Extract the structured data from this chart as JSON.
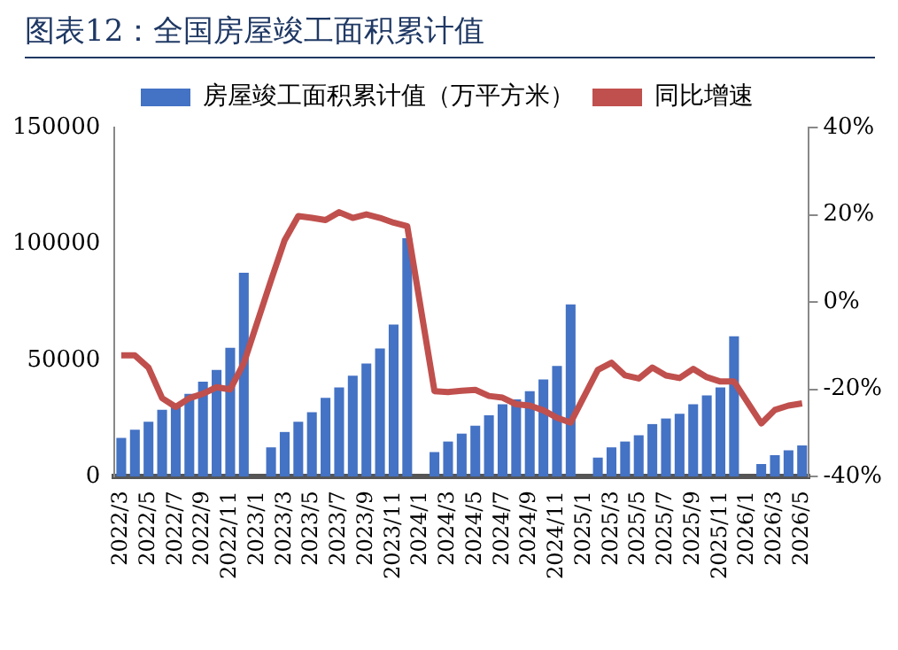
{
  "chart_data": {
    "type": "bar",
    "title": "图表12：全国房屋竣工面积累计值",
    "categories": [
      "2022/3",
      null,
      "2022/5",
      null,
      "2022/7",
      null,
      "2022/9",
      null,
      "2022/11",
      null,
      "2023/1",
      null,
      "2023/3",
      null,
      "2023/5",
      null,
      "2023/7",
      null,
      "2023/9",
      null,
      "2023/11",
      null,
      "2024/1",
      null,
      "2024/3",
      null,
      "2024/5",
      null,
      "2024/7",
      null,
      "2024/9",
      null,
      "2024/11",
      null,
      "2025/1",
      null,
      "2025/3",
      null,
      "2025/5",
      null,
      "2025/7",
      null,
      "2025/9",
      null,
      "2025/11",
      null,
      "2026/1",
      null,
      "2026/3",
      null,
      "2026/5"
    ],
    "series": [
      {
        "name": "房屋竣工面积累计值（万平方米）",
        "color": "#4472c4",
        "values": [
          16700,
          20200,
          23600,
          28700,
          30500,
          35600,
          40800,
          45900,
          55400,
          87600,
          null,
          12600,
          19200,
          23600,
          27700,
          33900,
          38300,
          43400,
          48600,
          55100,
          65400,
          102400,
          null,
          10600,
          15100,
          18500,
          21900,
          26400,
          31100,
          33200,
          36700,
          41800,
          47600,
          74000,
          null,
          8200,
          12600,
          15100,
          17800,
          22600,
          25000,
          27000,
          31100,
          34900,
          38300,
          60300,
          null,
          5400,
          9200,
          11300,
          13400
        ]
      },
      {
        "name": "同比增速",
        "type": "line",
        "axis": "y2",
        "color": "#c0504d",
        "values": [
          -12.2,
          -12.2,
          -15,
          -22,
          -24,
          -22,
          -21,
          -19.5,
          -20,
          -14,
          null,
          5,
          14.2,
          19.7,
          19.3,
          18.8,
          20.6,
          19.3,
          20.1,
          19.3,
          18.2,
          17.4,
          null,
          -20.4,
          -20.6,
          -20.3,
          -20.1,
          -21.5,
          -21.9,
          -23.4,
          -23.7,
          -24.8,
          -26.5,
          -27.6,
          null,
          -15.5,
          -13.9,
          -16.8,
          -17.5,
          -15,
          -16.8,
          -17.4,
          -15.3,
          -17.2,
          -18.2,
          -18.2,
          null,
          -27.8,
          -24.7,
          -23.7,
          -23.2
        ]
      }
    ],
    "ylim": [
      0,
      150000
    ],
    "yticks": [
      0,
      50000,
      100000,
      150000
    ],
    "y2lim": [
      -40,
      40
    ],
    "y2ticks": [
      {
        "value": -40,
        "label": "-40%"
      },
      {
        "value": -20,
        "label": "-20%"
      },
      {
        "value": 0,
        "label": "0%"
      },
      {
        "value": 20,
        "label": "20%"
      },
      {
        "value": 40,
        "label": "40%"
      }
    ],
    "legend": "top",
    "grid": false
  }
}
